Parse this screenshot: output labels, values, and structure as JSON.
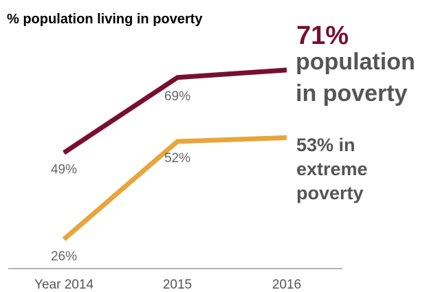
{
  "chart_data": {
    "type": "line",
    "title": "% population living in poverty",
    "xlabel": "",
    "ylabel": "",
    "x": [
      "Year 2014",
      "2015",
      "2016"
    ],
    "ylim": [
      20,
      75
    ],
    "grid": false,
    "series": [
      {
        "color": "#780f2e",
        "values": [
          49,
          69,
          71
        ],
        "data_labels": [
          "49%",
          "69%",
          ""
        ],
        "end_label": {
          "value": "71%",
          "lines": [
            "population",
            "in poverty"
          ]
        }
      },
      {
        "color": "#e8a53a",
        "values": [
          26,
          52,
          53
        ],
        "data_labels": [
          "26%",
          "52%",
          ""
        ],
        "end_label": {
          "value": "",
          "lines": [
            "53% in",
            "extreme",
            "poverty"
          ]
        }
      }
    ]
  }
}
